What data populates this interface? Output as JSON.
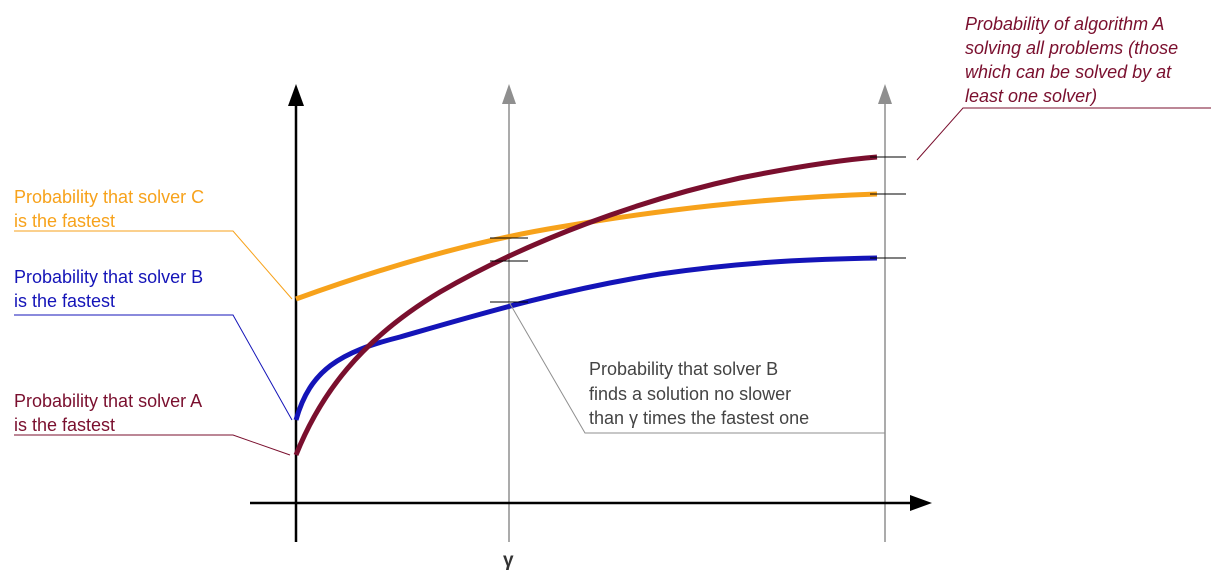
{
  "colors": {
    "solver_a": "#7a0f2e",
    "solver_b": "#1414b8",
    "solver_c": "#f7a21b",
    "axis": "#000000",
    "guide": "#8f8f8f",
    "callout_gray": "#444444"
  },
  "axis": {
    "x_marker_label": "γ"
  },
  "labels": {
    "solver_c": [
      "Probability that solver C",
      "is the fastest"
    ],
    "solver_b": [
      "Probability that solver B",
      "is the fastest"
    ],
    "solver_a": [
      "Probability that solver A",
      "is the fastest"
    ],
    "algorithm_a": [
      "Probability of algorithm A",
      "solving all problems (those",
      "which can be solved by at",
      "least one solver)"
    ],
    "solver_b_gamma": [
      "Probability that solver B",
      "finds a solution no slower",
      "than γ times the fastest one"
    ]
  }
}
